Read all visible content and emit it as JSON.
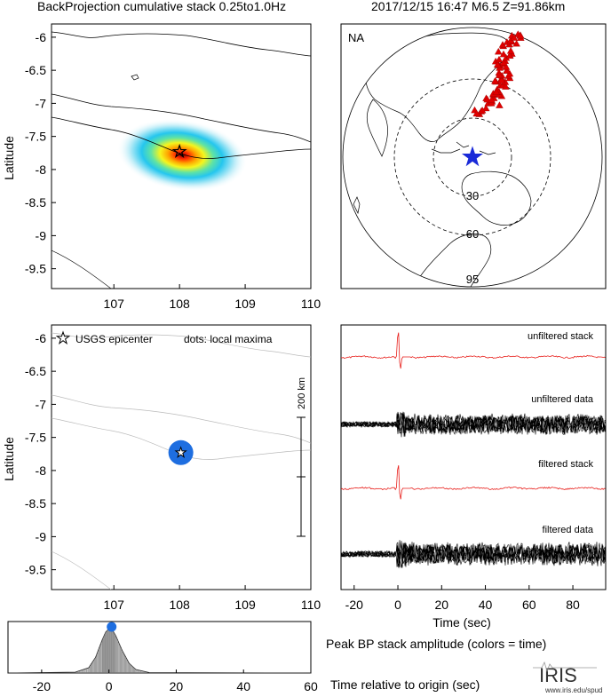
{
  "header": {
    "title": "BackProjection cumulative stack 0.25to1.0Hz",
    "event": "2017/12/15 16:47   M6.5   Z=91.86km"
  },
  "top_map": {
    "ylabel": "Latitude",
    "xticks": [
      "107",
      "108",
      "109",
      "110"
    ],
    "yticks": [
      "-6",
      "-6.5",
      "-7",
      "-7.5",
      "-8",
      "-8.5",
      "-9",
      "-9.5"
    ]
  },
  "globe": {
    "label": "NA",
    "rings": [
      "30",
      "60",
      "95"
    ]
  },
  "maxima_map": {
    "ylabel": "Latitude",
    "legend_star": "USGS epicenter",
    "legend_dots": "dots: local maxima",
    "scale": "200 km",
    "xticks": [
      "107",
      "108",
      "109",
      "110"
    ],
    "yticks": [
      "-6",
      "-6.5",
      "-7",
      "-7.5",
      "-8",
      "-8.5",
      "-9",
      "-9.5"
    ]
  },
  "seismograms": {
    "labels": [
      "unfiltered stack",
      "unfiltered data",
      "filtered stack",
      "filtered data"
    ],
    "xticks": [
      "-20",
      "0",
      "20",
      "40",
      "60",
      "80"
    ],
    "xlabel": "Time (sec)"
  },
  "stack_amp": {
    "title": "Peak BP stack amplitude (colors = time)",
    "xlabel": "Time relative to origin (sec)",
    "xticks": [
      "-20",
      "0",
      "20",
      "40",
      "60"
    ]
  },
  "logo": {
    "name": "IRIS",
    "url": "www.iris.edu/spud"
  },
  "colors": {
    "stack_trace": "#e8201c",
    "epicenter_dot": "#1e6ee0",
    "stations": "#e00000",
    "globe_star": "#1a2ad8"
  },
  "chart_data": [
    {
      "type": "heatmap",
      "title": "BackProjection cumulative stack 0.25to1.0Hz",
      "ylabel": "Latitude",
      "xlim": [
        106.05,
        110.0
      ],
      "ylim": [
        -9.8,
        -5.8
      ],
      "peak": {
        "lon": 108.0,
        "lat": -7.73
      },
      "epicenter": {
        "lon": 108.0,
        "lat": -7.73
      }
    },
    {
      "type": "scatter",
      "ylabel": "Latitude",
      "xlim": [
        106.05,
        110.0
      ],
      "ylim": [
        -9.8,
        -5.8
      ],
      "epicenter": {
        "lon": 108.02,
        "lat": -7.73
      },
      "local_maxima": [
        {
          "lon": 108.02,
          "lat": -7.73
        }
      ]
    },
    {
      "type": "line",
      "xlabel": "Time (sec)",
      "xlim": [
        -26,
        95
      ],
      "series": [
        {
          "name": "unfiltered stack",
          "onset": 0
        },
        {
          "name": "unfiltered data",
          "onset": 0
        },
        {
          "name": "filtered stack",
          "onset": 0
        },
        {
          "name": "filtered data",
          "onset": 0
        }
      ]
    },
    {
      "type": "area",
      "title": "Peak BP stack amplitude (colors = time)",
      "xlabel": "Time relative to origin (sec)",
      "xlim": [
        -30,
        60
      ],
      "x": [
        -30,
        -10,
        -6,
        -4,
        -2,
        -1,
        0,
        1,
        2,
        4,
        6,
        8,
        12,
        60
      ],
      "values": [
        0,
        0.02,
        0.12,
        0.35,
        0.75,
        0.92,
        1.0,
        0.97,
        0.85,
        0.5,
        0.22,
        0.08,
        0.01,
        0
      ],
      "peak_time": 0.8
    }
  ]
}
